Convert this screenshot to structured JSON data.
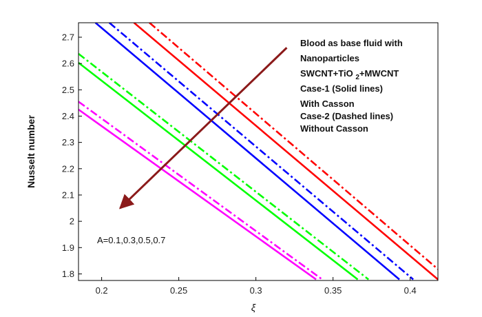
{
  "chart_data": {
    "type": "line",
    "xlabel": "ξ",
    "ylabel": "Nusselt number",
    "xlim": [
      0.185,
      0.418
    ],
    "ylim": [
      1.775,
      2.755
    ],
    "xticks": [
      "0.2",
      "0.25",
      "0.3",
      "0.35",
      "0.4"
    ],
    "xtick_values": [
      0.2,
      0.25,
      0.3,
      0.35,
      0.4
    ],
    "yticks": [
      "1.8",
      "1.9",
      "2",
      "2.1",
      "2.2",
      "2.3",
      "2.4",
      "2.5",
      "2.6",
      "2.7"
    ],
    "ytick_values": [
      1.8,
      1.9,
      2.0,
      2.1,
      2.2,
      2.3,
      2.4,
      2.5,
      2.6,
      2.7
    ],
    "grid": false,
    "annotation_lines": [
      "Blood as base fluid with",
      "Nanoparticles",
      "SWCNT+TiO2+MWCNT",
      "Case-1 (Solid lines)",
      "With Casson",
      "Case-2 (Dashed lines)",
      "Without Casson"
    ],
    "parameter_label": "A=0.1,0.3,0.5,0.7",
    "arrow": {
      "from": [
        0.32,
        2.66
      ],
      "to": [
        0.212,
        2.05
      ],
      "color": "#8b1a1a"
    },
    "series": [
      {
        "color": "#ff0000",
        "style": "solid",
        "x": [
          0.221,
          0.418
        ],
        "y": [
          2.755,
          1.779
        ]
      },
      {
        "color": "#ff0000",
        "style": "dashdot",
        "x": [
          0.231,
          0.418
        ],
        "y": [
          2.755,
          1.818
        ]
      },
      {
        "color": "#0000ff",
        "style": "solid",
        "x": [
          0.196,
          0.393
        ],
        "y": [
          2.755,
          1.779
        ]
      },
      {
        "color": "#0000ff",
        "style": "dashdot",
        "x": [
          0.205,
          0.402
        ],
        "y": [
          2.755,
          1.779
        ]
      },
      {
        "color": "#00ff00",
        "style": "solid",
        "x": [
          0.185,
          0.366
        ],
        "y": [
          2.603,
          1.779
        ]
      },
      {
        "color": "#00ff00",
        "style": "dashdot",
        "x": [
          0.185,
          0.373
        ],
        "y": [
          2.637,
          1.779
        ]
      },
      {
        "color": "#ff00ff",
        "style": "solid",
        "x": [
          0.185,
          0.339
        ],
        "y": [
          2.425,
          1.779
        ]
      },
      {
        "color": "#ff00ff",
        "style": "dashdot",
        "x": [
          0.185,
          0.343
        ],
        "y": [
          2.455,
          1.779
        ]
      }
    ]
  }
}
